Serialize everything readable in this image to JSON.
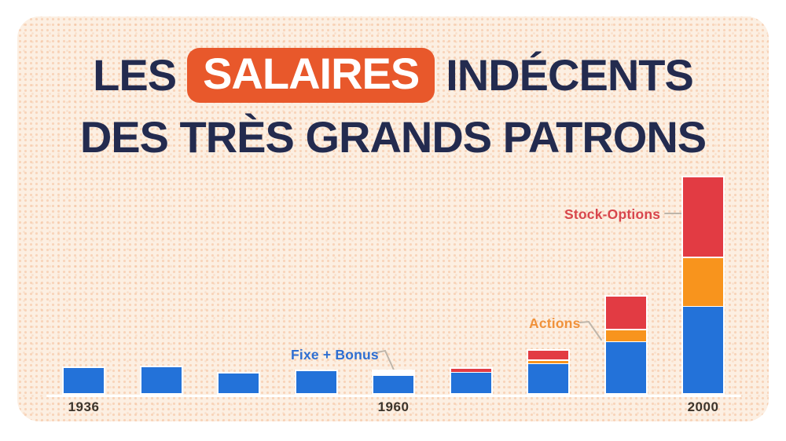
{
  "page": {
    "background": "#ffffff"
  },
  "card": {
    "background": "#fcefe2",
    "dot_pattern_color": "#ee945a"
  },
  "title": {
    "line1_pre": "LES",
    "badge": "SALAIRES",
    "line1_post": "INDÉCENTS",
    "line2": "DES TRÈS GRANDS PATRONS",
    "text_color": "#232b4f",
    "badge_bg": "#e8582b",
    "badge_text_color": "#ffffff"
  },
  "chart_data": {
    "type": "bar",
    "stacked": true,
    "title": "LES SALAIRES INDÉCENTS DES TRÈS GRANDS PATRONS",
    "value_axis": "none — stylized infographic, no numeric scale shown; values below are relative bar-segment heights read from the image (pixels)",
    "categories": [
      "1936",
      "",
      "",
      "",
      "1960",
      "",
      "",
      "",
      "2000"
    ],
    "x_tick_labels_visible": [
      "1936",
      "1960",
      "2000"
    ],
    "series": [
      {
        "name": "Fixe + Bonus",
        "color": "#2372d9",
        "values": [
          32,
          33,
          25,
          28,
          22,
          26,
          37,
          65,
          110
        ]
      },
      {
        "name": "Actions",
        "color": "#f8941d",
        "values": [
          0,
          0,
          0,
          0,
          0,
          0,
          3,
          14,
          61
        ]
      },
      {
        "name": "Stock-Options",
        "color": "#e23b43",
        "values": [
          0,
          0,
          0,
          0,
          0,
          4,
          11,
          41,
          101
        ]
      }
    ],
    "highlight_cap": {
      "bar_index": 4,
      "color": "#ffffff",
      "height": 5
    },
    "bar_outline_color": "#ffffff",
    "axis_line_color": "#ffffff",
    "tick_label_color": "#3c342b",
    "grid": false,
    "legend_position": "inline annotations with leader lines"
  },
  "annotations": {
    "fixe_bonus": {
      "label": "Fixe + Bonus",
      "color": "#2e6fd2",
      "points_to": "blue (Fixe + Bonus) segment of the 1960 bar"
    },
    "actions": {
      "label": "Actions",
      "color": "#f0923b",
      "points_to": "orange (Actions) segment of the 2nd-to-last bar"
    },
    "stock_options": {
      "label": "Stock-Options",
      "color": "#d8464c",
      "points_to": "red (Stock-Options) segment of the 2000 bar"
    }
  },
  "leader_line_color": "#beb5aa"
}
